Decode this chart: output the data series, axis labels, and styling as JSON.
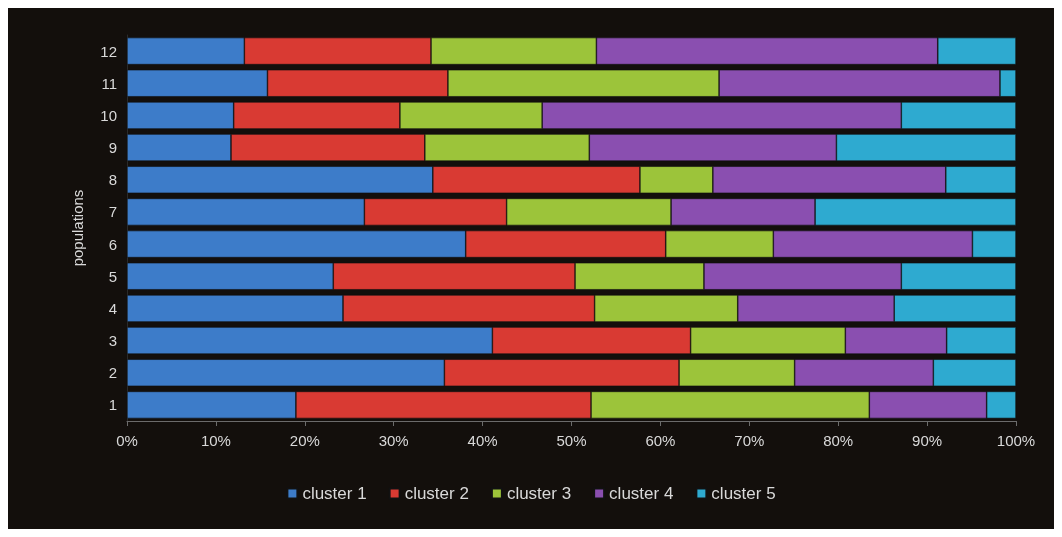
{
  "chart_data": {
    "type": "bar",
    "orientation": "horizontal",
    "stacked": true,
    "ylabel": "populations",
    "categories": [
      "12",
      "11",
      "10",
      "9",
      "8",
      "7",
      "6",
      "5",
      "4",
      "3",
      "2",
      "1"
    ],
    "series": [
      {
        "name": "cluster 1",
        "color": "#3d7cc9",
        "values": [
          13.2,
          15.8,
          12.0,
          11.7,
          34.4,
          26.7,
          38.1,
          23.2,
          24.3,
          41.1,
          35.7,
          19.0
        ]
      },
      {
        "name": "cluster 2",
        "color": "#d93a33",
        "values": [
          21.0,
          20.3,
          18.7,
          21.8,
          23.3,
          16.0,
          22.5,
          27.2,
          28.3,
          22.3,
          26.4,
          33.2
        ]
      },
      {
        "name": "cluster 3",
        "color": "#9cc43a",
        "values": [
          18.6,
          30.5,
          16.0,
          18.5,
          8.2,
          18.5,
          12.1,
          14.5,
          16.1,
          17.4,
          13.0,
          31.3
        ]
      },
      {
        "name": "cluster 4",
        "color": "#8a4fb0",
        "values": [
          38.4,
          31.6,
          40.4,
          27.8,
          26.2,
          16.2,
          22.4,
          22.2,
          17.6,
          11.4,
          15.6,
          13.2
        ]
      },
      {
        "name": "cluster 5",
        "color": "#2eaad0",
        "values": [
          8.8,
          1.8,
          12.9,
          20.2,
          7.9,
          22.6,
          4.9,
          12.9,
          13.7,
          7.8,
          9.3,
          3.3
        ]
      }
    ],
    "xlim": [
      0,
      100
    ],
    "xticks": [
      {
        "value": 0,
        "label": "0%"
      },
      {
        "value": 10,
        "label": "10%"
      },
      {
        "value": 20,
        "label": "20%"
      },
      {
        "value": 30,
        "label": "30%"
      },
      {
        "value": 40,
        "label": "40%"
      },
      {
        "value": 50,
        "label": "50%"
      },
      {
        "value": 60,
        "label": "60%"
      },
      {
        "value": 70,
        "label": "70%"
      },
      {
        "value": 80,
        "label": "80%"
      },
      {
        "value": 90,
        "label": "90%"
      },
      {
        "value": 100,
        "label": "100%"
      }
    ],
    "legend": "bottom"
  }
}
